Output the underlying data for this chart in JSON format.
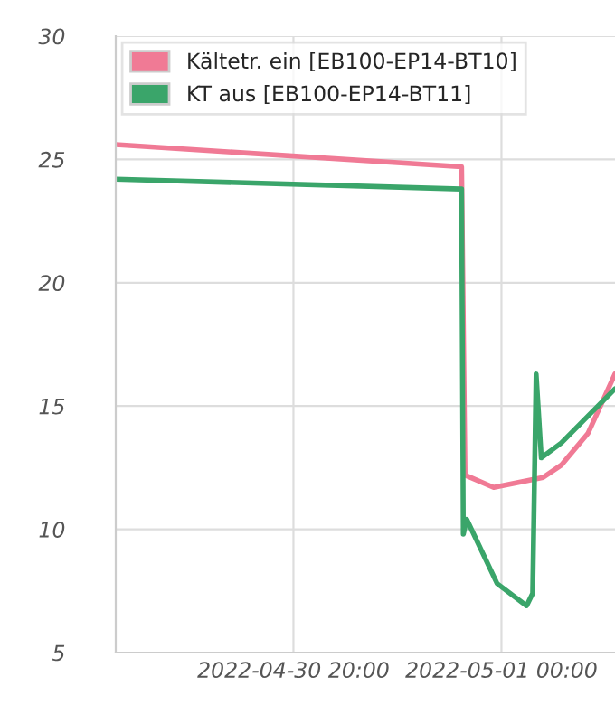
{
  "chart_data": {
    "type": "line",
    "series": [
      {
        "name": "Kältetr. ein [EB100-EP14-BT10]",
        "color": "#f07a95",
        "x": [
          "2022-04-30T16:35",
          "2022-04-30T23:14",
          "2022-04-30T23:18",
          "2022-04-30T23:51",
          "2022-05-01T00:48",
          "2022-05-01T01:09",
          "2022-05-01T01:40",
          "2022-05-01T02:11"
        ],
        "values": [
          25.6,
          24.7,
          12.2,
          11.7,
          12.1,
          12.6,
          13.9,
          16.3
        ]
      },
      {
        "name": "KT aus [EB100-EP14-BT11]",
        "color": "#3aa56a",
        "x": [
          "2022-04-30T16:35",
          "2022-04-30T23:14",
          "2022-04-30T23:16",
          "2022-04-30T23:20",
          "2022-04-30T23:55",
          "2022-05-01T00:29",
          "2022-05-01T00:36",
          "2022-05-01T00:40",
          "2022-05-01T00:46",
          "2022-05-01T01:09",
          "2022-05-01T02:11"
        ],
        "values": [
          24.2,
          23.8,
          9.8,
          10.4,
          7.8,
          6.9,
          7.4,
          16.3,
          12.9,
          13.5,
          15.7
        ]
      }
    ],
    "xlim": [
      "2022-04-30T16:35",
      "2022-05-01T02:11"
    ],
    "xticks": [
      {
        "value": "2022-04-30T20:00",
        "label": "2022-04-30 20:00"
      },
      {
        "value": "2022-05-01T00:00",
        "label": "2022-05-01 00:00"
      }
    ],
    "ylim": [
      5,
      30
    ],
    "yticks": [
      5,
      10,
      15,
      20,
      25,
      30
    ],
    "grid": true,
    "legend": "top left",
    "marker": "none",
    "line_style": "solid"
  }
}
